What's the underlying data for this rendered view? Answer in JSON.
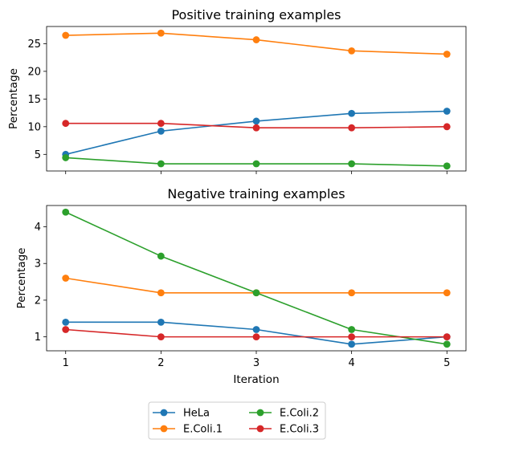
{
  "chart_data": [
    {
      "type": "line",
      "title": "Positive training examples",
      "xlabel": "",
      "ylabel": "Percentage",
      "x": [
        1,
        2,
        3,
        4,
        5
      ],
      "xlim": [
        0.8,
        5.2
      ],
      "ylim": [
        2.0,
        28.1
      ],
      "yticks": [
        5,
        10,
        15,
        20,
        25
      ],
      "grid": false,
      "series": [
        {
          "name": "HeLa",
          "color": "#1f77b4",
          "values": [
            5.0,
            9.2,
            11.0,
            12.4,
            12.8
          ]
        },
        {
          "name": "E.Coli.1",
          "color": "#ff7f0e",
          "values": [
            26.5,
            26.9,
            25.7,
            23.7,
            23.1
          ]
        },
        {
          "name": "E.Coli.2",
          "color": "#2ca02c",
          "values": [
            4.4,
            3.3,
            3.3,
            3.3,
            2.9
          ]
        },
        {
          "name": "E.Coli.3",
          "color": "#d62728",
          "values": [
            10.6,
            10.6,
            9.8,
            9.8,
            10.0
          ]
        }
      ]
    },
    {
      "type": "line",
      "title": "Negative training examples",
      "xlabel": "Iteration",
      "ylabel": "Percentage",
      "x": [
        1,
        2,
        3,
        4,
        5
      ],
      "xlim": [
        0.8,
        5.2
      ],
      "ylim": [
        0.62,
        4.58
      ],
      "yticks": [
        1,
        2,
        3,
        4
      ],
      "grid": false,
      "series": [
        {
          "name": "HeLa",
          "color": "#1f77b4",
          "values": [
            1.4,
            1.4,
            1.2,
            0.8,
            1.0
          ]
        },
        {
          "name": "E.Coli.1",
          "color": "#ff7f0e",
          "values": [
            2.6,
            2.2,
            2.2,
            2.2,
            2.2
          ]
        },
        {
          "name": "E.Coli.2",
          "color": "#2ca02c",
          "values": [
            4.4,
            3.2,
            2.2,
            1.2,
            0.8
          ]
        },
        {
          "name": "E.Coli.3",
          "color": "#d62728",
          "values": [
            1.2,
            1.0,
            1.0,
            1.0,
            1.0
          ]
        }
      ]
    }
  ],
  "legend": {
    "placement": "bottom-center",
    "columns": 2,
    "entries": [
      "HeLa",
      "E.Coli.1",
      "E.Coli.2",
      "E.Coli.3"
    ]
  }
}
